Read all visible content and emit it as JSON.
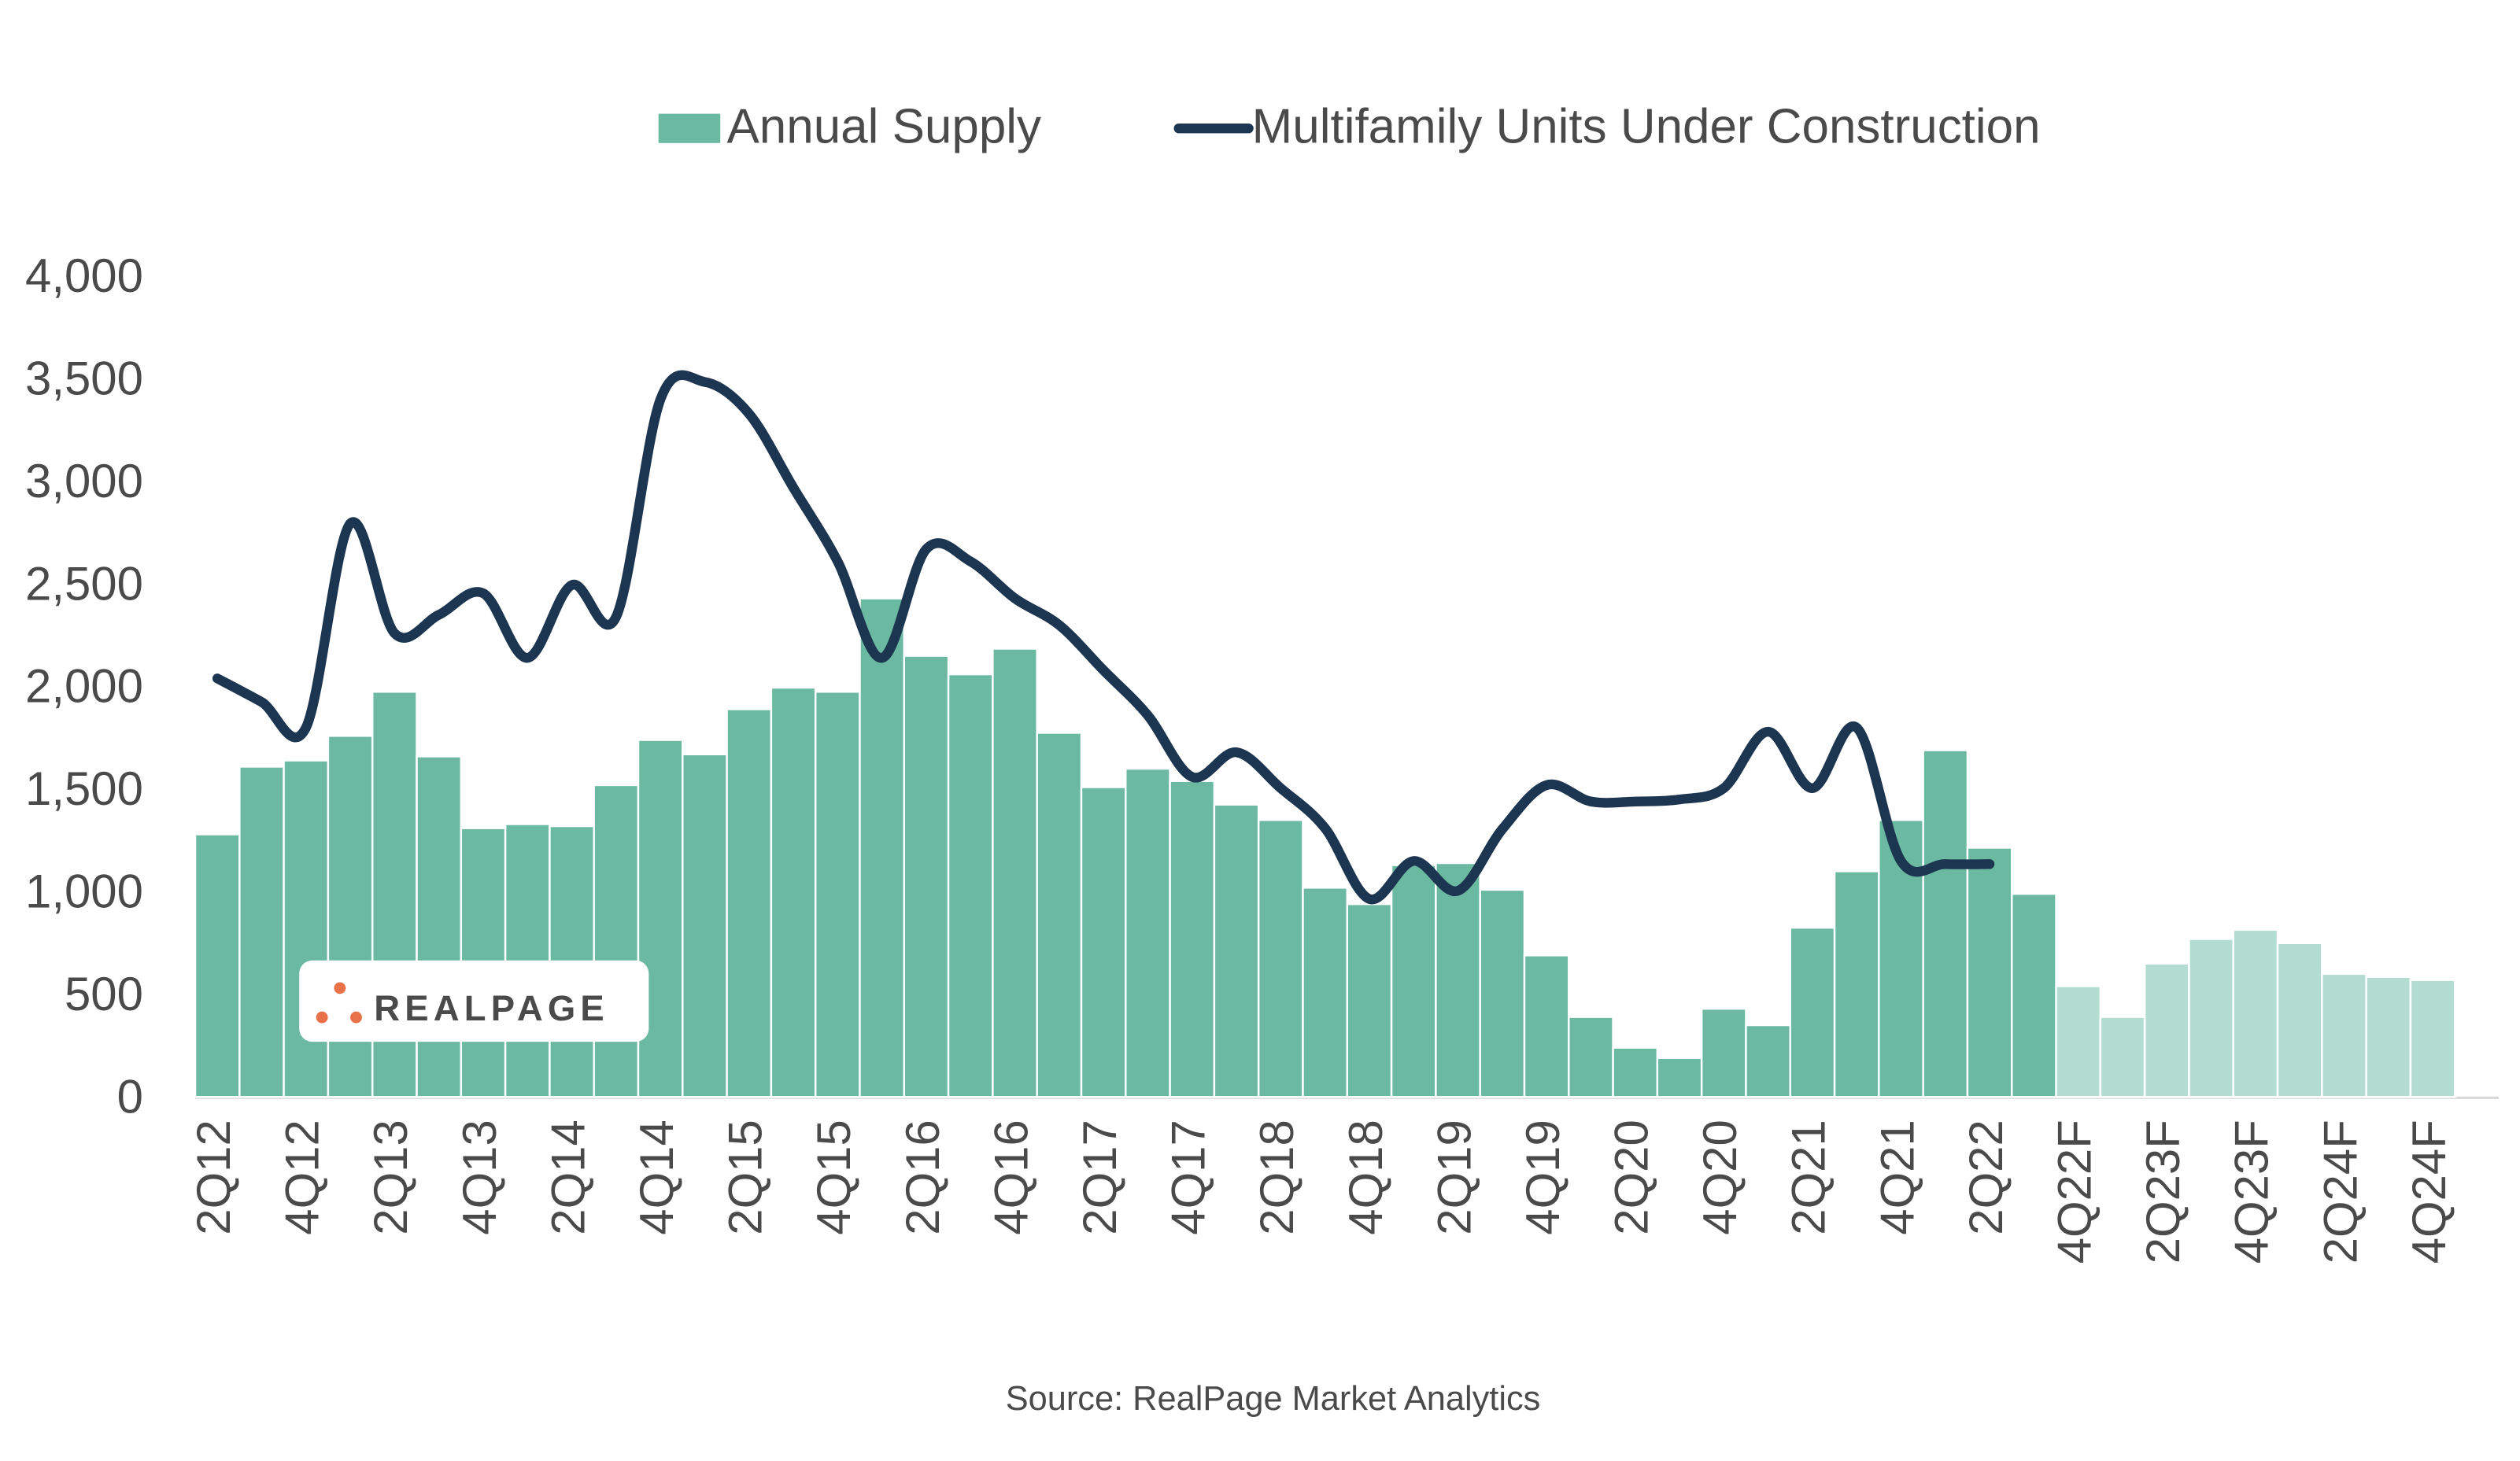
{
  "chart_data": {
    "type": "bar",
    "categories": [
      "2Q12",
      null,
      "4Q12",
      null,
      "2Q13",
      null,
      "4Q13",
      null,
      "2Q14",
      null,
      "4Q14",
      null,
      "2Q15",
      null,
      "4Q15",
      null,
      "2Q16",
      null,
      "4Q16",
      null,
      "2Q17",
      null,
      "4Q17",
      null,
      "2Q18",
      null,
      "4Q18",
      null,
      "2Q19",
      null,
      "4Q19",
      null,
      "2Q20",
      null,
      "4Q20",
      null,
      "2Q21",
      null,
      "4Q21",
      null,
      "2Q22",
      null,
      "4Q22F",
      null,
      "2Q23F",
      null,
      "4Q23F",
      null,
      "2Q24F",
      null,
      "4Q24F"
    ],
    "series": [
      {
        "name": "Annual Supply",
        "type": "bar",
        "color": "#6ab9a0",
        "colors": [
          "#6ab9a0",
          "#6ab9a0",
          "#6ab9a0",
          "#6ab9a0",
          "#6ab9a0",
          "#6ab9a0",
          "#6ab9a0",
          "#6ab9a0",
          "#6ab9a0",
          "#6ab9a0",
          "#6ab9a0",
          "#6ab9a0",
          "#6ab9a0",
          "#6ab9a0",
          "#6ab9a0",
          "#6ab9a0",
          "#6ab9a0",
          "#6ab9a0",
          "#6ab9a0",
          "#6ab9a0",
          "#6ab9a0",
          "#6ab9a0",
          "#6ab9a0",
          "#6ab9a0",
          "#6ab9a0",
          "#6ab9a0",
          "#6ab9a0",
          "#6ab9a0",
          "#6ab9a0",
          "#6ab9a0",
          "#6ab9a0",
          "#6ab9a0",
          "#6ab9a0",
          "#6ab9a0",
          "#6ab9a0",
          "#6ab9a0",
          "#6ab9a0",
          "#6ab9a0",
          "#6ab9a0",
          "#6ab9a0",
          "#6ab9a0",
          "#6ab9a0",
          "#b3ddd0",
          "#b3ddd0",
          "#b3ddd0",
          "#b3ddd0",
          "#b3ddd0",
          "#b3ddd0",
          "#b3ddd0",
          "#b3ddd0",
          "#b3ddd0"
        ],
        "values": [
          1280,
          1610,
          1640,
          1760,
          1975,
          1660,
          1310,
          1330,
          1320,
          1520,
          1740,
          1670,
          1890,
          1995,
          1975,
          2430,
          2150,
          2060,
          2185,
          1775,
          1510,
          1600,
          1540,
          1425,
          1350,
          1020,
          940,
          1130,
          1140,
          1010,
          690,
          390,
          240,
          190,
          430,
          350,
          825,
          1100,
          1350,
          1690,
          1215,
          990,
          540,
          390,
          650,
          770,
          815,
          750,
          600,
          585,
          570
        ]
      },
      {
        "name": "Multifamily Units Under Construction",
        "type": "line",
        "color": "#1c3550",
        "values": [
          2040,
          1925,
          1800,
          2795,
          2260,
          2350,
          2455,
          2140,
          2495,
          2340,
          3400,
          3485,
          3330,
          2970,
          2610,
          2140,
          2670,
          2610,
          2430,
          2300,
          2080,
          1860,
          1560,
          1680,
          1505,
          1310,
          965,
          1150,
          1005,
          1305,
          1520,
          1440,
          1440,
          1450,
          1505,
          1780,
          1505,
          1800,
          1150,
          1135,
          1135,
          null,
          null,
          null,
          null,
          null,
          null,
          null,
          null,
          null,
          null
        ]
      }
    ],
    "ylim": [
      0,
      4000
    ],
    "yticks": [
      0,
      500,
      {
        "value": 1000,
        "label": "1,000"
      },
      {
        "value": 1500,
        "label": "1,500"
      },
      {
        "value": 2000,
        "label": "2,000"
      },
      {
        "value": 2500,
        "label": "2,500"
      },
      {
        "value": 3000,
        "label": "3,000"
      },
      {
        "value": 3500,
        "label": "3,500"
      },
      {
        "value": 4000,
        "label": "4,000"
      }
    ],
    "source": "Source: RealPage Market Analytics",
    "logo": "REALPAGE"
  }
}
